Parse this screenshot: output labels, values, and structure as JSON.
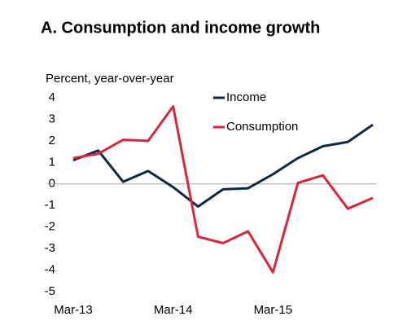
{
  "chart_data": {
    "type": "line",
    "title": "A. Consumption and income growth",
    "y_label": "Percent, year-over-year",
    "categories": [
      "Mar-13",
      null,
      null,
      null,
      "Mar-14",
      null,
      null,
      null,
      "Mar-15",
      null,
      null,
      null,
      null
    ],
    "series": [
      {
        "name": "Income",
        "color": "#0b2a4a",
        "values": [
          1.1,
          1.55,
          0.1,
          0.6,
          -0.15,
          -1.05,
          -0.25,
          -0.2,
          0.45,
          1.2,
          1.75,
          1.95,
          2.75
        ]
      },
      {
        "name": "Consumption",
        "color": "#d9263b",
        "values": [
          1.2,
          1.4,
          2.05,
          2.0,
          3.6,
          -2.45,
          -2.75,
          -2.2,
          -4.1,
          0.05,
          0.4,
          -1.15,
          -0.65
        ]
      }
    ],
    "ylim": [
      -5,
      4
    ],
    "yticks": [
      -5,
      -4,
      -3,
      -2,
      -1,
      0,
      1,
      2,
      3,
      4
    ],
    "grid": false,
    "legend": "top-right"
  }
}
